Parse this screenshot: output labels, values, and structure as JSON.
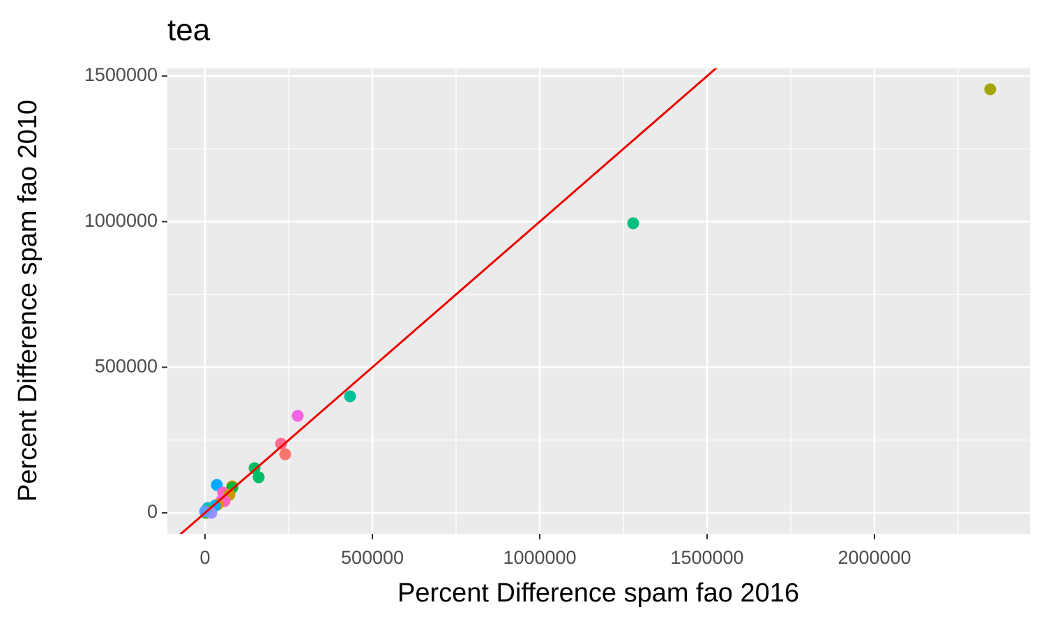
{
  "chart_data": {
    "type": "scatter",
    "title": "tea",
    "x_label": "Percent Difference spam fao 2016",
    "y_label": "Percent Difference spam fao 2010",
    "x": [
      2345833,
      1279167,
      433333,
      277083,
      227083,
      239583,
      147917,
      160417,
      35417,
      81250,
      81250,
      54167,
      72917,
      50000,
      58333,
      37500,
      29167,
      8333,
      12500,
      2083,
      18750,
      0
    ],
    "values": [
      1454400,
      994400,
      400150,
      333000,
      237200,
      201300,
      153400,
      122200,
      95800,
      91000,
      86300,
      69500,
      62300,
      43100,
      40700,
      28800,
      24000,
      16800,
      4800,
      0,
      0,
      4800
    ],
    "colors": [
      "#A3A500",
      "#00BF7D",
      "#00C19A",
      "#F564E3",
      "#FF6C91",
      "#F8766D",
      "#00BE67",
      "#00BE67",
      "#00A9FF",
      "#E58700",
      "#00BA38",
      "#FF61C3",
      "#C99800",
      "#E76BF3",
      "#FF62BC",
      "#D89000",
      "#00B0F6",
      "#00BFC4",
      "#7CAE00",
      "#39B600",
      "#9590FF",
      "#619CFF"
    ],
    "xlim": [
      -112500,
      2464583
    ],
    "ylim": [
      -71900,
      1526300
    ],
    "xticks": [
      0,
      500000,
      1000000,
      1500000,
      2000000
    ],
    "yticks": [
      0,
      500000,
      1000000,
      1500000
    ],
    "grid": true,
    "reference_line": {
      "slope": 1,
      "intercept": 0,
      "color": "#EE0000"
    }
  }
}
